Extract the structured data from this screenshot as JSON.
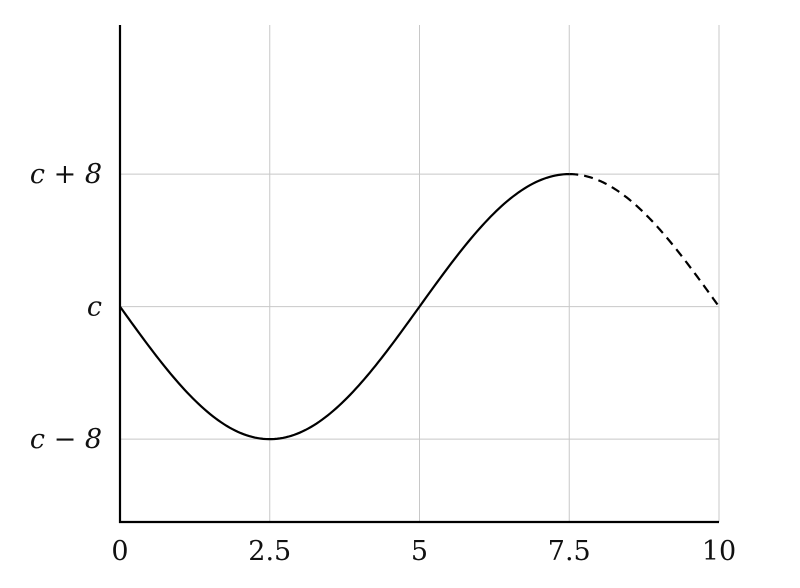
{
  "chart_data": {
    "type": "line",
    "title": "",
    "xlabel": "",
    "ylabel": "",
    "x_ticks": [
      0,
      2.5,
      5,
      7.5,
      10
    ],
    "x_tick_labels": [
      "0",
      "2.5",
      "5",
      "7.5",
      "10"
    ],
    "y_tick_values": [
      -8,
      0,
      8
    ],
    "y_tick_labels": [
      "c − 8",
      "c",
      "c + 8"
    ],
    "xlim": [
      0,
      10
    ],
    "ylim": [
      -13,
      17
    ],
    "grid": true,
    "series": [
      {
        "style": "solid",
        "color": "#000000",
        "function": "-8*sin(2*pi*x/10)",
        "x_range": [
          0,
          7.5
        ],
        "points": [
          [
            0,
            0
          ],
          [
            1.25,
            -5.66
          ],
          [
            2.5,
            -8
          ],
          [
            3.75,
            -5.66
          ],
          [
            5,
            0
          ],
          [
            6.25,
            5.66
          ],
          [
            7.5,
            8
          ]
        ]
      },
      {
        "style": "dashed",
        "color": "#000000",
        "function": "-8*sin(2*pi*x/10)",
        "x_range": [
          7.5,
          10
        ],
        "points": [
          [
            7.5,
            8
          ],
          [
            8.75,
            5.66
          ],
          [
            10,
            0
          ]
        ]
      }
    ]
  }
}
